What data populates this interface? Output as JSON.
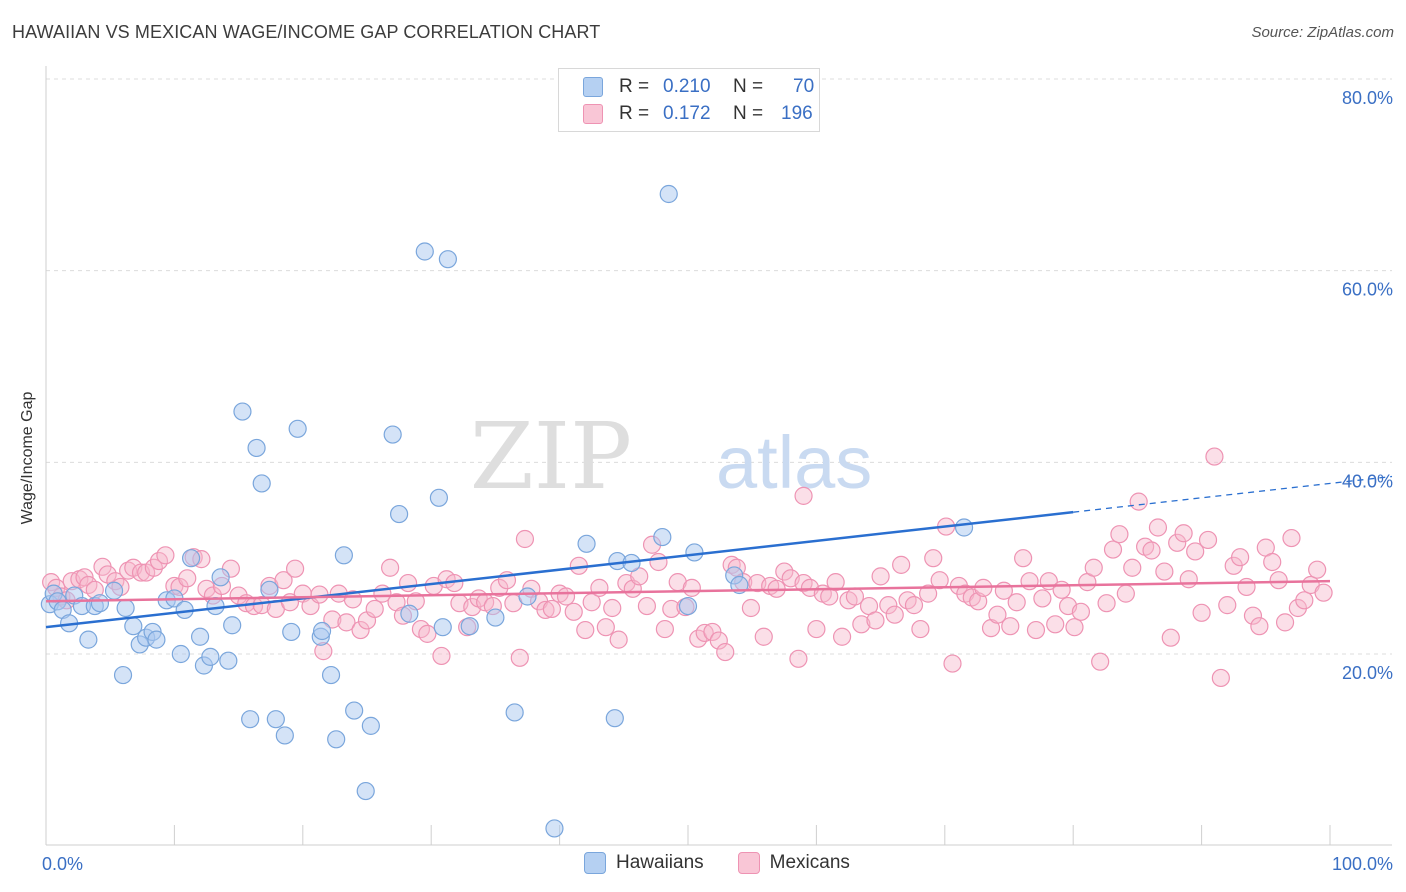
{
  "header": {
    "title": "HAWAIIAN VS MEXICAN WAGE/INCOME GAP CORRELATION CHART",
    "source": "Source: ZipAtlas.com"
  },
  "watermark": {
    "zip": "ZIP",
    "atlas": "atlas"
  },
  "legend": {
    "rows": [
      {
        "r_label": "R =",
        "r_value": "0.210",
        "n_label": "N =",
        "n_value": "70"
      },
      {
        "r_label": "R =",
        "r_value": "0.172",
        "n_label": "N =",
        "n_value": "196"
      }
    ]
  },
  "bottom_legend": {
    "hawaiians": "Hawaiians",
    "mexicans": "Mexicans"
  },
  "colors": {
    "hawaiian_fill": "#a9c8f0",
    "hawaiian_stroke": "#7aa6dc",
    "hawaiian_line": "#2a6fd0",
    "mexican_fill": "#f6b9cd",
    "mexican_stroke": "#ee93b3",
    "mexican_line": "#e8739c",
    "tick_label": "#3a6fc4",
    "grid": "#dcdcdc"
  },
  "chart_data": {
    "type": "scatter",
    "title": "HAWAIIAN VS MEXICAN WAGE/INCOME GAP CORRELATION CHART",
    "xlabel": "",
    "ylabel": "Wage/Income Gap",
    "xlim": [
      0,
      100
    ],
    "ylim": [
      0,
      82
    ],
    "x_ticks": [
      0,
      100
    ],
    "x_tick_labels": [
      "0.0%",
      "100.0%"
    ],
    "y_ticks": [
      20,
      40,
      60,
      80
    ],
    "y_tick_labels": [
      "20.0%",
      "40.0%",
      "60.0%",
      "80.0%"
    ],
    "grid": true,
    "legend_position": "top-center",
    "series": [
      {
        "name": "Hawaiians",
        "r": 0.21,
        "n": 70,
        "trend": {
          "x0": 0,
          "y0": 22.8,
          "x1": 100,
          "y1": 37.8,
          "solid_until_x": 80
        },
        "points": [
          [
            0.3,
            25.2
          ],
          [
            0.6,
            26.3
          ],
          [
            0.9,
            25.5
          ],
          [
            1.3,
            24.6
          ],
          [
            1.8,
            23.2
          ],
          [
            2.2,
            26.1
          ],
          [
            2.8,
            25.0
          ],
          [
            3.3,
            21.5
          ],
          [
            3.8,
            25.0
          ],
          [
            4.2,
            25.3
          ],
          [
            5.3,
            26.6
          ],
          [
            6.0,
            17.8
          ],
          [
            6.2,
            24.8
          ],
          [
            6.8,
            22.9
          ],
          [
            7.3,
            21.0
          ],
          [
            7.8,
            21.7
          ],
          [
            8.3,
            22.3
          ],
          [
            8.6,
            21.5
          ],
          [
            9.4,
            25.6
          ],
          [
            10.0,
            25.8
          ],
          [
            10.5,
            20.0
          ],
          [
            10.8,
            24.6
          ],
          [
            11.3,
            30.0
          ],
          [
            12.0,
            21.8
          ],
          [
            12.3,
            18.8
          ],
          [
            12.8,
            19.7
          ],
          [
            13.2,
            25.0
          ],
          [
            13.6,
            28.0
          ],
          [
            14.2,
            19.3
          ],
          [
            14.5,
            23.0
          ],
          [
            15.3,
            45.3
          ],
          [
            15.9,
            13.2
          ],
          [
            16.4,
            41.5
          ],
          [
            16.8,
            37.8
          ],
          [
            17.4,
            26.7
          ],
          [
            17.9,
            13.2
          ],
          [
            18.6,
            11.5
          ],
          [
            19.1,
            22.3
          ],
          [
            19.6,
            43.5
          ],
          [
            21.4,
            21.8
          ],
          [
            21.5,
            22.4
          ],
          [
            22.2,
            17.8
          ],
          [
            22.6,
            11.1
          ],
          [
            23.2,
            30.3
          ],
          [
            24.0,
            14.1
          ],
          [
            24.9,
            5.7
          ],
          [
            25.3,
            12.5
          ],
          [
            27.0,
            42.9
          ],
          [
            27.5,
            34.6
          ],
          [
            28.3,
            24.2
          ],
          [
            29.5,
            62.0
          ],
          [
            30.6,
            36.3
          ],
          [
            30.9,
            22.8
          ],
          [
            31.3,
            61.2
          ],
          [
            33.0,
            22.9
          ],
          [
            35.0,
            23.8
          ],
          [
            36.5,
            13.9
          ],
          [
            37.5,
            26.0
          ],
          [
            39.6,
            1.8
          ],
          [
            42.1,
            31.5
          ],
          [
            44.3,
            13.3
          ],
          [
            44.5,
            29.7
          ],
          [
            45.6,
            29.5
          ],
          [
            48.0,
            32.2
          ],
          [
            48.5,
            68.0
          ],
          [
            50.0,
            25.0
          ],
          [
            50.5,
            30.6
          ],
          [
            53.6,
            28.2
          ],
          [
            54.0,
            27.2
          ],
          [
            71.5,
            33.2
          ]
        ]
      },
      {
        "name": "Mexicans",
        "r": 0.172,
        "n": 196,
        "trend": {
          "x0": 0,
          "y0": 25.5,
          "x1": 100,
          "y1": 27.6
        },
        "points": [
          [
            0.4,
            27.5
          ],
          [
            0.8,
            26.9
          ],
          [
            1.2,
            26.0
          ],
          [
            1.6,
            25.6
          ],
          [
            2.0,
            27.6
          ],
          [
            2.6,
            27.8
          ],
          [
            3.0,
            28.0
          ],
          [
            3.3,
            27.2
          ],
          [
            3.8,
            26.7
          ],
          [
            4.4,
            29.1
          ],
          [
            4.8,
            28.3
          ],
          [
            5.4,
            27.6
          ],
          [
            5.8,
            27.0
          ],
          [
            6.4,
            28.7
          ],
          [
            6.8,
            29.0
          ],
          [
            7.4,
            28.5
          ],
          [
            7.8,
            28.5
          ],
          [
            8.4,
            29.0
          ],
          [
            8.8,
            29.7
          ],
          [
            9.3,
            30.3
          ],
          [
            10.0,
            27.1
          ],
          [
            10.4,
            27.0
          ],
          [
            11.0,
            27.9
          ],
          [
            11.5,
            30.1
          ],
          [
            12.1,
            29.9
          ],
          [
            12.5,
            26.8
          ],
          [
            13.0,
            26.1
          ],
          [
            13.7,
            27.1
          ],
          [
            14.4,
            28.9
          ],
          [
            15.0,
            26.1
          ],
          [
            15.6,
            25.3
          ],
          [
            16.2,
            25.0
          ],
          [
            16.8,
            25.1
          ],
          [
            17.4,
            27.1
          ],
          [
            17.9,
            24.7
          ],
          [
            18.5,
            27.7
          ],
          [
            19.0,
            25.4
          ],
          [
            19.4,
            28.9
          ],
          [
            20.0,
            26.3
          ],
          [
            20.6,
            25.0
          ],
          [
            21.3,
            26.2
          ],
          [
            21.6,
            20.3
          ],
          [
            22.3,
            23.6
          ],
          [
            22.8,
            26.3
          ],
          [
            23.4,
            23.3
          ],
          [
            23.9,
            25.7
          ],
          [
            24.5,
            22.5
          ],
          [
            25.0,
            23.5
          ],
          [
            25.6,
            24.7
          ],
          [
            26.2,
            26.3
          ],
          [
            26.8,
            29.0
          ],
          [
            27.3,
            25.4
          ],
          [
            27.8,
            24.0
          ],
          [
            28.2,
            27.4
          ],
          [
            28.8,
            25.5
          ],
          [
            29.2,
            22.6
          ],
          [
            29.7,
            22.1
          ],
          [
            30.2,
            27.1
          ],
          [
            30.8,
            19.8
          ],
          [
            31.2,
            27.8
          ],
          [
            31.8,
            27.4
          ],
          [
            32.2,
            25.3
          ],
          [
            32.8,
            22.8
          ],
          [
            33.2,
            24.9
          ],
          [
            33.7,
            25.8
          ],
          [
            34.2,
            25.4
          ],
          [
            34.8,
            25.0
          ],
          [
            35.3,
            26.9
          ],
          [
            35.9,
            27.7
          ],
          [
            36.4,
            25.3
          ],
          [
            36.9,
            19.6
          ],
          [
            37.3,
            32.0
          ],
          [
            37.8,
            26.8
          ],
          [
            38.4,
            25.5
          ],
          [
            38.9,
            24.6
          ],
          [
            39.4,
            24.7
          ],
          [
            40.0,
            26.3
          ],
          [
            40.5,
            26.0
          ],
          [
            41.1,
            24.4
          ],
          [
            41.5,
            29.2
          ],
          [
            42.0,
            22.5
          ],
          [
            42.5,
            25.4
          ],
          [
            43.1,
            26.9
          ],
          [
            43.6,
            22.8
          ],
          [
            44.1,
            24.8
          ],
          [
            44.6,
            21.5
          ],
          [
            45.2,
            27.4
          ],
          [
            45.7,
            26.8
          ],
          [
            46.2,
            28.1
          ],
          [
            46.8,
            25.0
          ],
          [
            47.2,
            31.4
          ],
          [
            47.7,
            29.6
          ],
          [
            48.2,
            22.6
          ],
          [
            48.7,
            24.7
          ],
          [
            49.2,
            27.5
          ],
          [
            49.8,
            24.9
          ],
          [
            50.3,
            26.9
          ],
          [
            50.8,
            21.6
          ],
          [
            51.3,
            22.2
          ],
          [
            51.9,
            22.3
          ],
          [
            52.4,
            21.4
          ],
          [
            52.9,
            20.2
          ],
          [
            53.4,
            29.3
          ],
          [
            53.8,
            29.0
          ],
          [
            54.3,
            27.5
          ],
          [
            54.9,
            24.8
          ],
          [
            55.4,
            27.4
          ],
          [
            55.9,
            21.8
          ],
          [
            56.4,
            27.1
          ],
          [
            56.9,
            26.8
          ],
          [
            57.5,
            28.6
          ],
          [
            58.0,
            27.9
          ],
          [
            58.6,
            19.5
          ],
          [
            59.0,
            27.4
          ],
          [
            59.5,
            26.9
          ],
          [
            60.0,
            22.6
          ],
          [
            60.5,
            26.3
          ],
          [
            61.0,
            26.0
          ],
          [
            61.5,
            27.5
          ],
          [
            62.0,
            21.8
          ],
          [
            62.5,
            25.6
          ],
          [
            63.0,
            26.0
          ],
          [
            63.5,
            23.1
          ],
          [
            64.1,
            25.0
          ],
          [
            64.6,
            23.5
          ],
          [
            65.0,
            28.1
          ],
          [
            65.6,
            25.1
          ],
          [
            66.1,
            24.1
          ],
          [
            66.6,
            29.3
          ],
          [
            67.1,
            25.6
          ],
          [
            67.6,
            25.1
          ],
          [
            68.1,
            22.6
          ],
          [
            68.7,
            26.3
          ],
          [
            69.1,
            30.0
          ],
          [
            69.6,
            27.7
          ],
          [
            70.1,
            33.3
          ],
          [
            70.6,
            19.0
          ],
          [
            71.1,
            27.1
          ],
          [
            71.6,
            26.3
          ],
          [
            72.1,
            25.9
          ],
          [
            72.6,
            25.5
          ],
          [
            73.0,
            26.9
          ],
          [
            73.6,
            22.7
          ],
          [
            74.1,
            24.1
          ],
          [
            74.6,
            26.6
          ],
          [
            75.1,
            22.9
          ],
          [
            75.6,
            25.4
          ],
          [
            76.1,
            30.0
          ],
          [
            76.6,
            27.6
          ],
          [
            77.1,
            22.5
          ],
          [
            77.6,
            25.8
          ],
          [
            78.1,
            27.6
          ],
          [
            78.6,
            23.1
          ],
          [
            79.1,
            26.7
          ],
          [
            79.6,
            25.0
          ],
          [
            80.1,
            22.8
          ],
          [
            80.6,
            24.4
          ],
          [
            81.1,
            27.5
          ],
          [
            81.6,
            29.0
          ],
          [
            82.1,
            19.2
          ],
          [
            82.6,
            25.3
          ],
          [
            83.1,
            30.9
          ],
          [
            83.6,
            32.5
          ],
          [
            84.1,
            26.3
          ],
          [
            84.6,
            29.0
          ],
          [
            85.1,
            35.9
          ],
          [
            85.6,
            31.2
          ],
          [
            86.1,
            30.8
          ],
          [
            86.6,
            33.2
          ],
          [
            87.1,
            28.6
          ],
          [
            87.6,
            21.7
          ],
          [
            88.1,
            31.6
          ],
          [
            88.6,
            32.6
          ],
          [
            89.0,
            27.8
          ],
          [
            89.5,
            30.7
          ],
          [
            90.0,
            24.3
          ],
          [
            90.5,
            31.9
          ],
          [
            91.0,
            40.6
          ],
          [
            91.5,
            17.5
          ],
          [
            92.0,
            25.1
          ],
          [
            92.5,
            29.2
          ],
          [
            93.0,
            30.1
          ],
          [
            93.5,
            27.0
          ],
          [
            94.0,
            24.0
          ],
          [
            94.5,
            22.9
          ],
          [
            95.0,
            31.1
          ],
          [
            95.5,
            29.6
          ],
          [
            96.0,
            27.7
          ],
          [
            96.5,
            23.3
          ],
          [
            97.0,
            32.1
          ],
          [
            97.5,
            24.8
          ],
          [
            98.0,
            25.6
          ],
          [
            98.5,
            27.2
          ],
          [
            99.0,
            28.8
          ],
          [
            99.5,
            26.4
          ],
          [
            59.0,
            36.5
          ]
        ]
      }
    ]
  }
}
